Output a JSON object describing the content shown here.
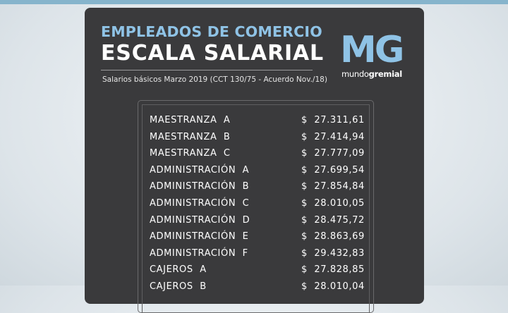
{
  "header": {
    "title_line1": "EMPLEADOS DE COMERCIO",
    "title_line2": "ESCALA SALARIAL",
    "subtitle": "Salarios básicos Marzo 2019 (CCT 130/75 - Acuerdo Nov./18)"
  },
  "logo": {
    "initials": "MG",
    "brand_part1": "mundo",
    "brand_part2": "gremial"
  },
  "colors": {
    "accent": "#8fc3e6",
    "card_background": "#3a3a3c",
    "top_bar": "#86b4cc"
  },
  "salary_table": {
    "currency": "$",
    "rows": [
      {
        "category": "MAESTRANZA  A",
        "amount": "27.311,61"
      },
      {
        "category": "MAESTRANZA  B",
        "amount": "27.414,94"
      },
      {
        "category": "MAESTRANZA  C",
        "amount": "27.777,09"
      },
      {
        "category": "ADMINISTRACIÓN  A",
        "amount": "27.699,54"
      },
      {
        "category": "ADMINISTRACIÓN  B",
        "amount": "27.854,84"
      },
      {
        "category": "ADMINISTRACIÓN  C",
        "amount": "28.010,05"
      },
      {
        "category": "ADMINISTRACIÓN  D",
        "amount": "28.475,72"
      },
      {
        "category": "ADMINISTRACIÓN  E",
        "amount": "28.863,69"
      },
      {
        "category": "ADMINISTRACIÓN  F",
        "amount": "29.432,83"
      },
      {
        "category": "CAJEROS  A",
        "amount": "27.828,85"
      },
      {
        "category": "CAJEROS  B",
        "amount": "28.010,04"
      }
    ]
  }
}
